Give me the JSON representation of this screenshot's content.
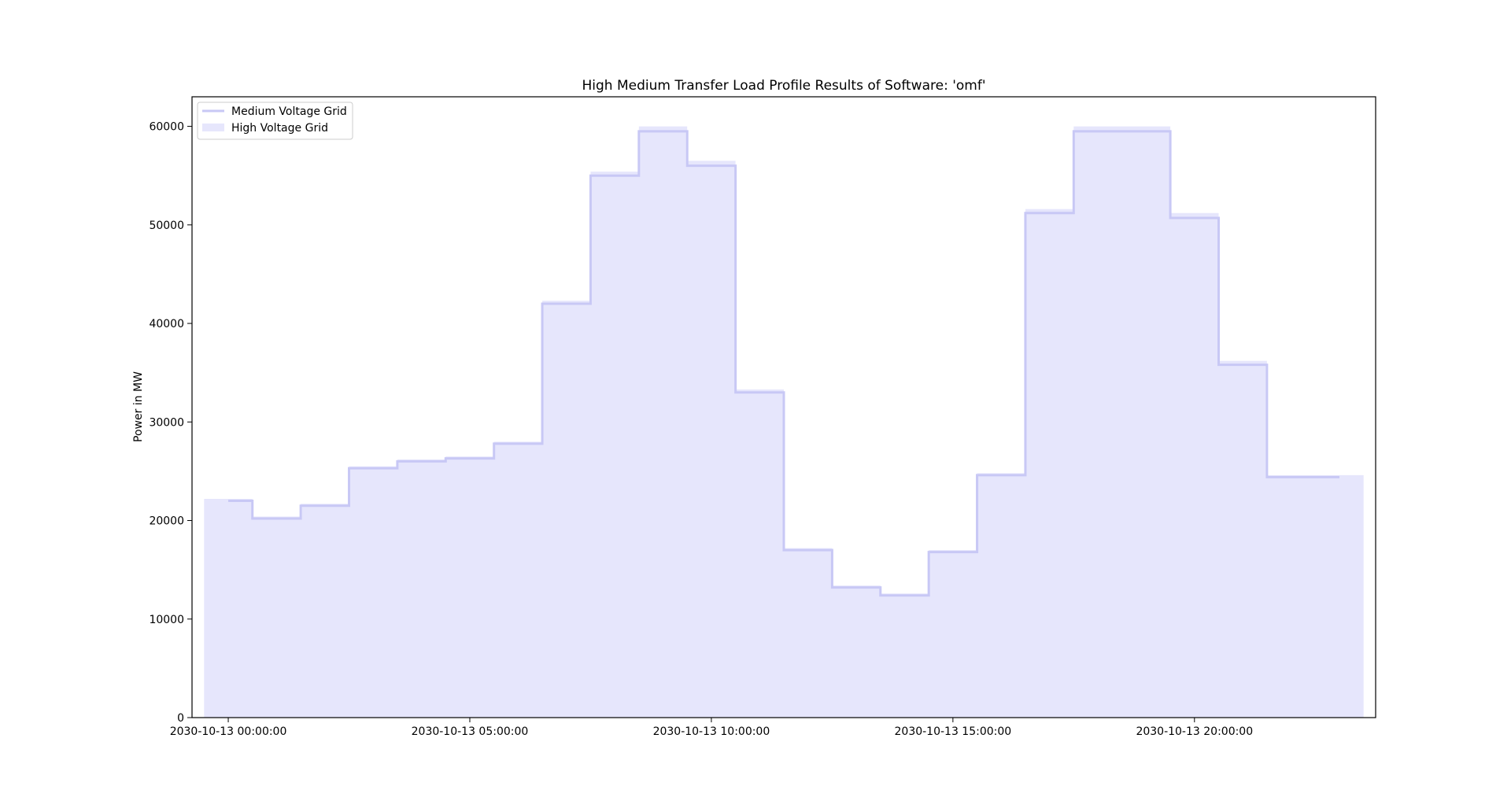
{
  "chart_data": {
    "type": "area",
    "title": "High Medium Transfer Load Profile Results of Software: 'omf'",
    "xlabel": "",
    "ylabel": "Power in MW",
    "x": [
      "2030-10-13 00:00:00",
      "2030-10-13 01:00:00",
      "2030-10-13 02:00:00",
      "2030-10-13 03:00:00",
      "2030-10-13 04:00:00",
      "2030-10-13 05:00:00",
      "2030-10-13 06:00:00",
      "2030-10-13 07:00:00",
      "2030-10-13 08:00:00",
      "2030-10-13 09:00:00",
      "2030-10-13 10:00:00",
      "2030-10-13 11:00:00",
      "2030-10-13 12:00:00",
      "2030-10-13 13:00:00",
      "2030-10-13 14:00:00",
      "2030-10-13 15:00:00",
      "2030-10-13 16:00:00",
      "2030-10-13 17:00:00",
      "2030-10-13 18:00:00",
      "2030-10-13 19:00:00",
      "2030-10-13 20:00:00",
      "2030-10-13 21:00:00",
      "2030-10-13 22:00:00",
      "2030-10-13 23:00:00"
    ],
    "series": [
      {
        "name": "Medium Voltage Grid",
        "style": "step-line",
        "color": "#c8c8f5",
        "values": [
          22000,
          20200,
          21500,
          25300,
          26000,
          26300,
          27800,
          42000,
          55000,
          59500,
          56000,
          33000,
          17000,
          13200,
          12400,
          16800,
          24600,
          51200,
          59500,
          59500,
          50700,
          35800,
          24400,
          24400
        ]
      },
      {
        "name": "High Voltage Grid",
        "style": "step-fill",
        "color": "#e6e6fc",
        "values": [
          22200,
          20400,
          21700,
          25500,
          26200,
          26500,
          28000,
          42300,
          55400,
          60000,
          56500,
          33300,
          17200,
          13400,
          12600,
          17000,
          24800,
          51600,
          60000,
          60000,
          51200,
          36200,
          24600,
          24600
        ]
      }
    ],
    "x_ticks": [
      "2030-10-13 00:00:00",
      "2030-10-13 05:00:00",
      "2030-10-13 10:00:00",
      "2030-10-13 15:00:00",
      "2030-10-13 20:00:00"
    ],
    "y_ticks": [
      "0",
      "10000",
      "20000",
      "30000",
      "40000",
      "50000",
      "60000"
    ],
    "ylim": [
      0,
      63000
    ],
    "xlim_hours": [
      -0.75,
      23.75
    ],
    "grid": false,
    "legend_position": "upper-left"
  }
}
